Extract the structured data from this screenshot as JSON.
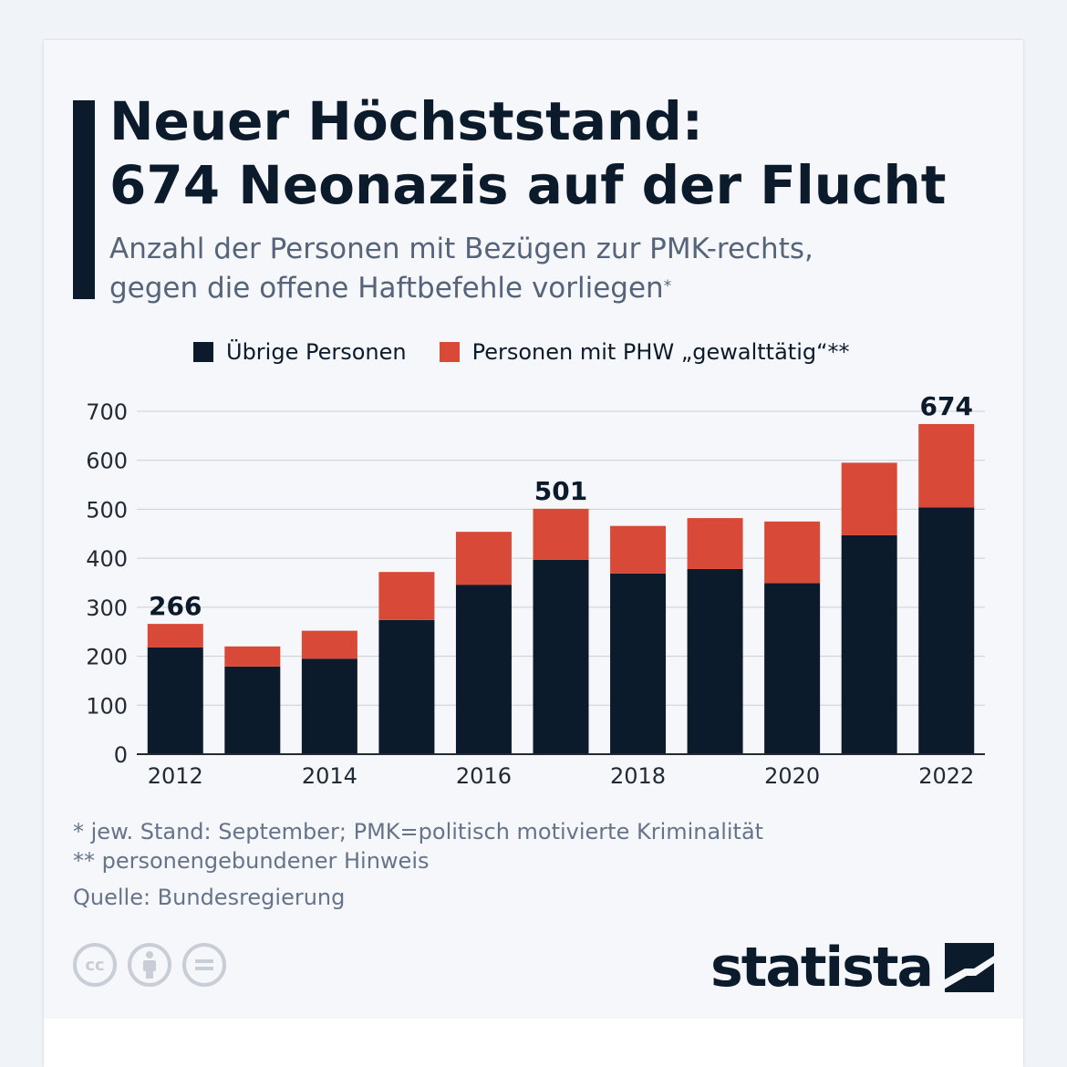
{
  "header": {
    "title_line1": "Neuer Höchststand:",
    "title_line2": "674 Neonazis auf der Flucht",
    "subtitle_line1": "Anzahl der Personen mit Bezügen zur PMK-rechts,",
    "subtitle_line2": "gegen die offene Haftbefehle vorliegen",
    "subtitle_sup": "*"
  },
  "legend": {
    "item1": "Übrige Personen",
    "item2": "Personen mit PHW „gewalttätig“**"
  },
  "colors": {
    "base": "#0c1b2c",
    "accent": "#d84a37",
    "grid": "#c9ced6"
  },
  "chart_data": {
    "type": "bar",
    "stacked": true,
    "categories": [
      "2012",
      "2013",
      "2014",
      "2015",
      "2016",
      "2017",
      "2018",
      "2019",
      "2020",
      "2021",
      "2022"
    ],
    "x_tick_labels": [
      "2012",
      "",
      "2014",
      "",
      "2016",
      "",
      "2018",
      "",
      "2020",
      "",
      "2022"
    ],
    "series": [
      {
        "name": "Übrige Personen",
        "values": [
          218,
          179,
          195,
          274,
          346,
          397,
          369,
          378,
          349,
          447,
          504
        ]
      },
      {
        "name": "Personen mit PHW „gewalttätig“**",
        "values": [
          48,
          41,
          57,
          98,
          108,
          104,
          97,
          104,
          126,
          148,
          170
        ]
      }
    ],
    "value_labels": [
      {
        "category": "2012",
        "text": "266"
      },
      {
        "category": "2017",
        "text": "501"
      },
      {
        "category": "2022",
        "text": "674"
      }
    ],
    "y_ticks": [
      0,
      100,
      200,
      300,
      400,
      500,
      600,
      700
    ],
    "ylim": [
      0,
      700
    ],
    "grid": true,
    "legend_position": "top"
  },
  "notes": {
    "note1": "*   jew. Stand: September; PMK=politisch motivierte Kriminalität",
    "note2": "** personengebundener Hinweis",
    "source": "Quelle: Bundesregierung"
  },
  "footer": {
    "cc_icons": [
      "cc-icon",
      "by-icon",
      "nd-icon"
    ],
    "cc_label": "cc",
    "brand": "statista"
  }
}
